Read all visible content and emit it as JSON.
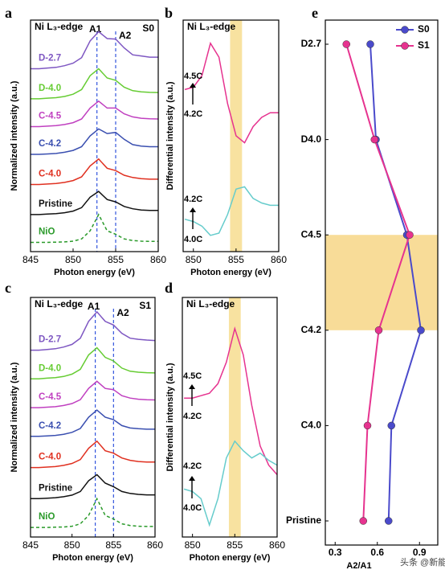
{
  "chart_data": [
    {
      "type": "line",
      "panel": "a",
      "title": "Ni L₃-edge",
      "sample": "S0",
      "xlabel": "Photon energy (eV)",
      "ylabel": "Normalized intensity (a.u.)",
      "x": [
        845,
        846,
        847,
        848,
        849,
        850,
        851,
        852,
        853,
        854,
        855,
        856,
        857,
        858,
        859,
        860
      ],
      "xlim": [
        845,
        860
      ],
      "xticks": [
        845,
        850,
        855,
        860
      ],
      "ylim": [
        0,
        10
      ],
      "reference_lines": [
        {
          "label": "A1",
          "value": 852.8
        },
        {
          "label": "A2",
          "value": 855
        }
      ],
      "series": [
        {
          "name": "D-2.7",
          "color": "#7e57c2",
          "values": [
            7.9,
            7.9,
            7.93,
            7.96,
            8.03,
            8.14,
            8.38,
            9.1,
            9.5,
            9.2,
            9.18,
            8.8,
            8.5,
            8.45,
            8.4,
            8.4
          ]
        },
        {
          "name": "D-4.0",
          "color": "#66cc33",
          "values": [
            6.6,
            6.6,
            6.63,
            6.65,
            6.7,
            6.8,
            7.0,
            7.6,
            7.9,
            7.5,
            7.4,
            7.1,
            6.95,
            6.9,
            6.88,
            6.87
          ]
        },
        {
          "name": "C-4.5",
          "color": "#c040c0",
          "values": [
            5.4,
            5.4,
            5.42,
            5.44,
            5.49,
            5.57,
            5.73,
            6.2,
            6.5,
            6.2,
            6.2,
            5.95,
            5.82,
            5.76,
            5.74,
            5.73
          ]
        },
        {
          "name": "C-4.2",
          "color": "#3a4fb0",
          "values": [
            4.2,
            4.2,
            4.22,
            4.24,
            4.29,
            4.37,
            4.53,
            5.0,
            5.3,
            5.1,
            5.15,
            4.85,
            4.62,
            4.56,
            4.53,
            4.53
          ]
        },
        {
          "name": "C-4.0",
          "color": "#e03020",
          "values": [
            2.9,
            2.9,
            2.92,
            2.94,
            2.99,
            3.07,
            3.23,
            3.7,
            4.0,
            3.6,
            3.5,
            3.3,
            3.2,
            3.15,
            3.13,
            3.13
          ]
        },
        {
          "name": "Pristine",
          "color": "#111111",
          "values": [
            1.6,
            1.6,
            1.62,
            1.64,
            1.68,
            1.75,
            1.9,
            2.35,
            2.6,
            2.25,
            2.15,
            1.95,
            1.85,
            1.8,
            1.78,
            1.78
          ]
        },
        {
          "name": "NiO",
          "color": "#2a9a2a",
          "dashed": true,
          "values": [
            0.4,
            0.4,
            0.4,
            0.41,
            0.42,
            0.45,
            0.55,
            0.9,
            1.6,
            0.9,
            0.75,
            0.55,
            0.48,
            0.45,
            0.44,
            0.44
          ]
        }
      ]
    },
    {
      "type": "line",
      "panel": "b",
      "title": "Ni L₃-edge",
      "xlabel": "Photon energy (eV)",
      "ylabel": "Differential intensity (a.u.)",
      "x": [
        849,
        850,
        851,
        852,
        853,
        854,
        855,
        856,
        857,
        858,
        859,
        860
      ],
      "xlim": [
        848.8,
        860
      ],
      "xticks": [
        850,
        855,
        860
      ],
      "ylim": [
        0,
        10
      ],
      "highlight": [
        854.3,
        855.7
      ],
      "annotations": [
        "4.5C",
        "4.2C",
        "4.2C",
        "4.0C"
      ],
      "series": [
        {
          "color": "#e6338f",
          "values": [
            7.0,
            7.1,
            7.6,
            9.0,
            8.4,
            6.4,
            5.0,
            4.7,
            5.4,
            5.8,
            6.0,
            6.0
          ]
        },
        {
          "color": "#66cccc",
          "values": [
            1.4,
            1.3,
            1.1,
            0.7,
            0.8,
            1.6,
            2.7,
            2.8,
            2.3,
            2.1,
            2.0,
            2.0
          ]
        }
      ]
    },
    {
      "type": "line",
      "panel": "c",
      "title": "Ni L₃-edge",
      "sample": "S1",
      "xlabel": "Photon energy (eV)",
      "ylabel": "Normalized intensity (a.u.)",
      "x": [
        845,
        846,
        847,
        848,
        849,
        850,
        851,
        852,
        853,
        854,
        855,
        856,
        857,
        858,
        859,
        860
      ],
      "xlim": [
        845,
        860
      ],
      "xticks": [
        845,
        850,
        855,
        860
      ],
      "ylim": [
        0,
        10
      ],
      "reference_lines": [
        {
          "label": "A1",
          "value": 852.8
        },
        {
          "label": "A2",
          "value": 855
        }
      ],
      "series": [
        {
          "name": "D-2.7",
          "color": "#7e57c2",
          "values": [
            7.8,
            7.8,
            7.83,
            7.86,
            7.93,
            8.04,
            8.3,
            9.0,
            9.4,
            9.0,
            8.85,
            8.5,
            8.3,
            8.25,
            8.22,
            8.2
          ]
        },
        {
          "name": "D-4.0",
          "color": "#66cc33",
          "values": [
            6.6,
            6.6,
            6.63,
            6.65,
            6.7,
            6.8,
            7.0,
            7.6,
            7.9,
            7.5,
            7.35,
            7.05,
            6.92,
            6.88,
            6.86,
            6.85
          ]
        },
        {
          "name": "C-4.5",
          "color": "#c040c0",
          "values": [
            5.4,
            5.4,
            5.42,
            5.44,
            5.49,
            5.57,
            5.73,
            6.2,
            6.5,
            6.2,
            6.15,
            5.9,
            5.8,
            5.75,
            5.73,
            5.72
          ]
        },
        {
          "name": "C-4.2",
          "color": "#3a4fb0",
          "values": [
            4.2,
            4.2,
            4.22,
            4.24,
            4.29,
            4.37,
            4.53,
            5.0,
            5.3,
            5.0,
            4.9,
            4.65,
            4.55,
            4.52,
            4.5,
            4.5
          ]
        },
        {
          "name": "C-4.0",
          "color": "#e03020",
          "values": [
            2.9,
            2.9,
            2.92,
            2.94,
            2.99,
            3.07,
            3.23,
            3.7,
            4.0,
            3.6,
            3.5,
            3.3,
            3.2,
            3.15,
            3.13,
            3.13
          ]
        },
        {
          "name": "Pristine",
          "color": "#111111",
          "values": [
            1.6,
            1.6,
            1.62,
            1.64,
            1.68,
            1.75,
            1.9,
            2.35,
            2.6,
            2.25,
            2.1,
            1.9,
            1.82,
            1.78,
            1.76,
            1.76
          ]
        },
        {
          "name": "NiO",
          "color": "#2a9a2a",
          "dashed": true,
          "values": [
            0.4,
            0.4,
            0.4,
            0.41,
            0.42,
            0.45,
            0.55,
            0.9,
            1.6,
            0.9,
            0.75,
            0.55,
            0.48,
            0.45,
            0.44,
            0.44
          ]
        }
      ]
    },
    {
      "type": "line",
      "panel": "d",
      "title": "Ni L₃-edge",
      "xlabel": "Photon energy (eV)",
      "ylabel": "Differential intensity (a.u.)",
      "x": [
        849,
        850,
        851,
        852,
        853,
        854,
        855,
        856,
        857,
        858,
        859,
        860
      ],
      "xlim": [
        848.8,
        860
      ],
      "xticks": [
        850,
        855,
        860
      ],
      "ylim": [
        0,
        10
      ],
      "highlight": [
        854.3,
        855.7
      ],
      "annotations": [
        "4.5C",
        "4.2C",
        "4.2C",
        "4.0C"
      ],
      "series": [
        {
          "color": "#e6338f",
          "values": [
            5.8,
            5.8,
            5.9,
            6.0,
            6.4,
            7.3,
            8.7,
            7.6,
            5.5,
            3.8,
            3.0,
            2.6
          ]
        },
        {
          "color": "#66cccc",
          "values": [
            2.0,
            1.9,
            1.6,
            0.5,
            1.6,
            3.3,
            4.0,
            3.6,
            3.3,
            3.5,
            3.2,
            3.0
          ]
        }
      ]
    },
    {
      "type": "dotline",
      "panel": "e",
      "xlabel": "A2/A1",
      "categories": [
        "Pristine",
        "C4.0",
        "C4.2",
        "C4.5",
        "D4.0",
        "D2.7"
      ],
      "xlim": [
        0.23,
        1.03
      ],
      "xticks": [
        0.3,
        0.6,
        0.9
      ],
      "highlight": [
        2,
        3
      ],
      "legend": "upper right",
      "series": [
        {
          "name": "S0",
          "color": "#4a4acb",
          "values": [
            0.68,
            0.7,
            0.91,
            0.81,
            0.59,
            0.55
          ]
        },
        {
          "name": "S1",
          "color": "#e6338f",
          "values": [
            0.5,
            0.53,
            0.61,
            0.83,
            0.58,
            0.38
          ]
        }
      ]
    }
  ],
  "watermark": "头条 @新能源"
}
